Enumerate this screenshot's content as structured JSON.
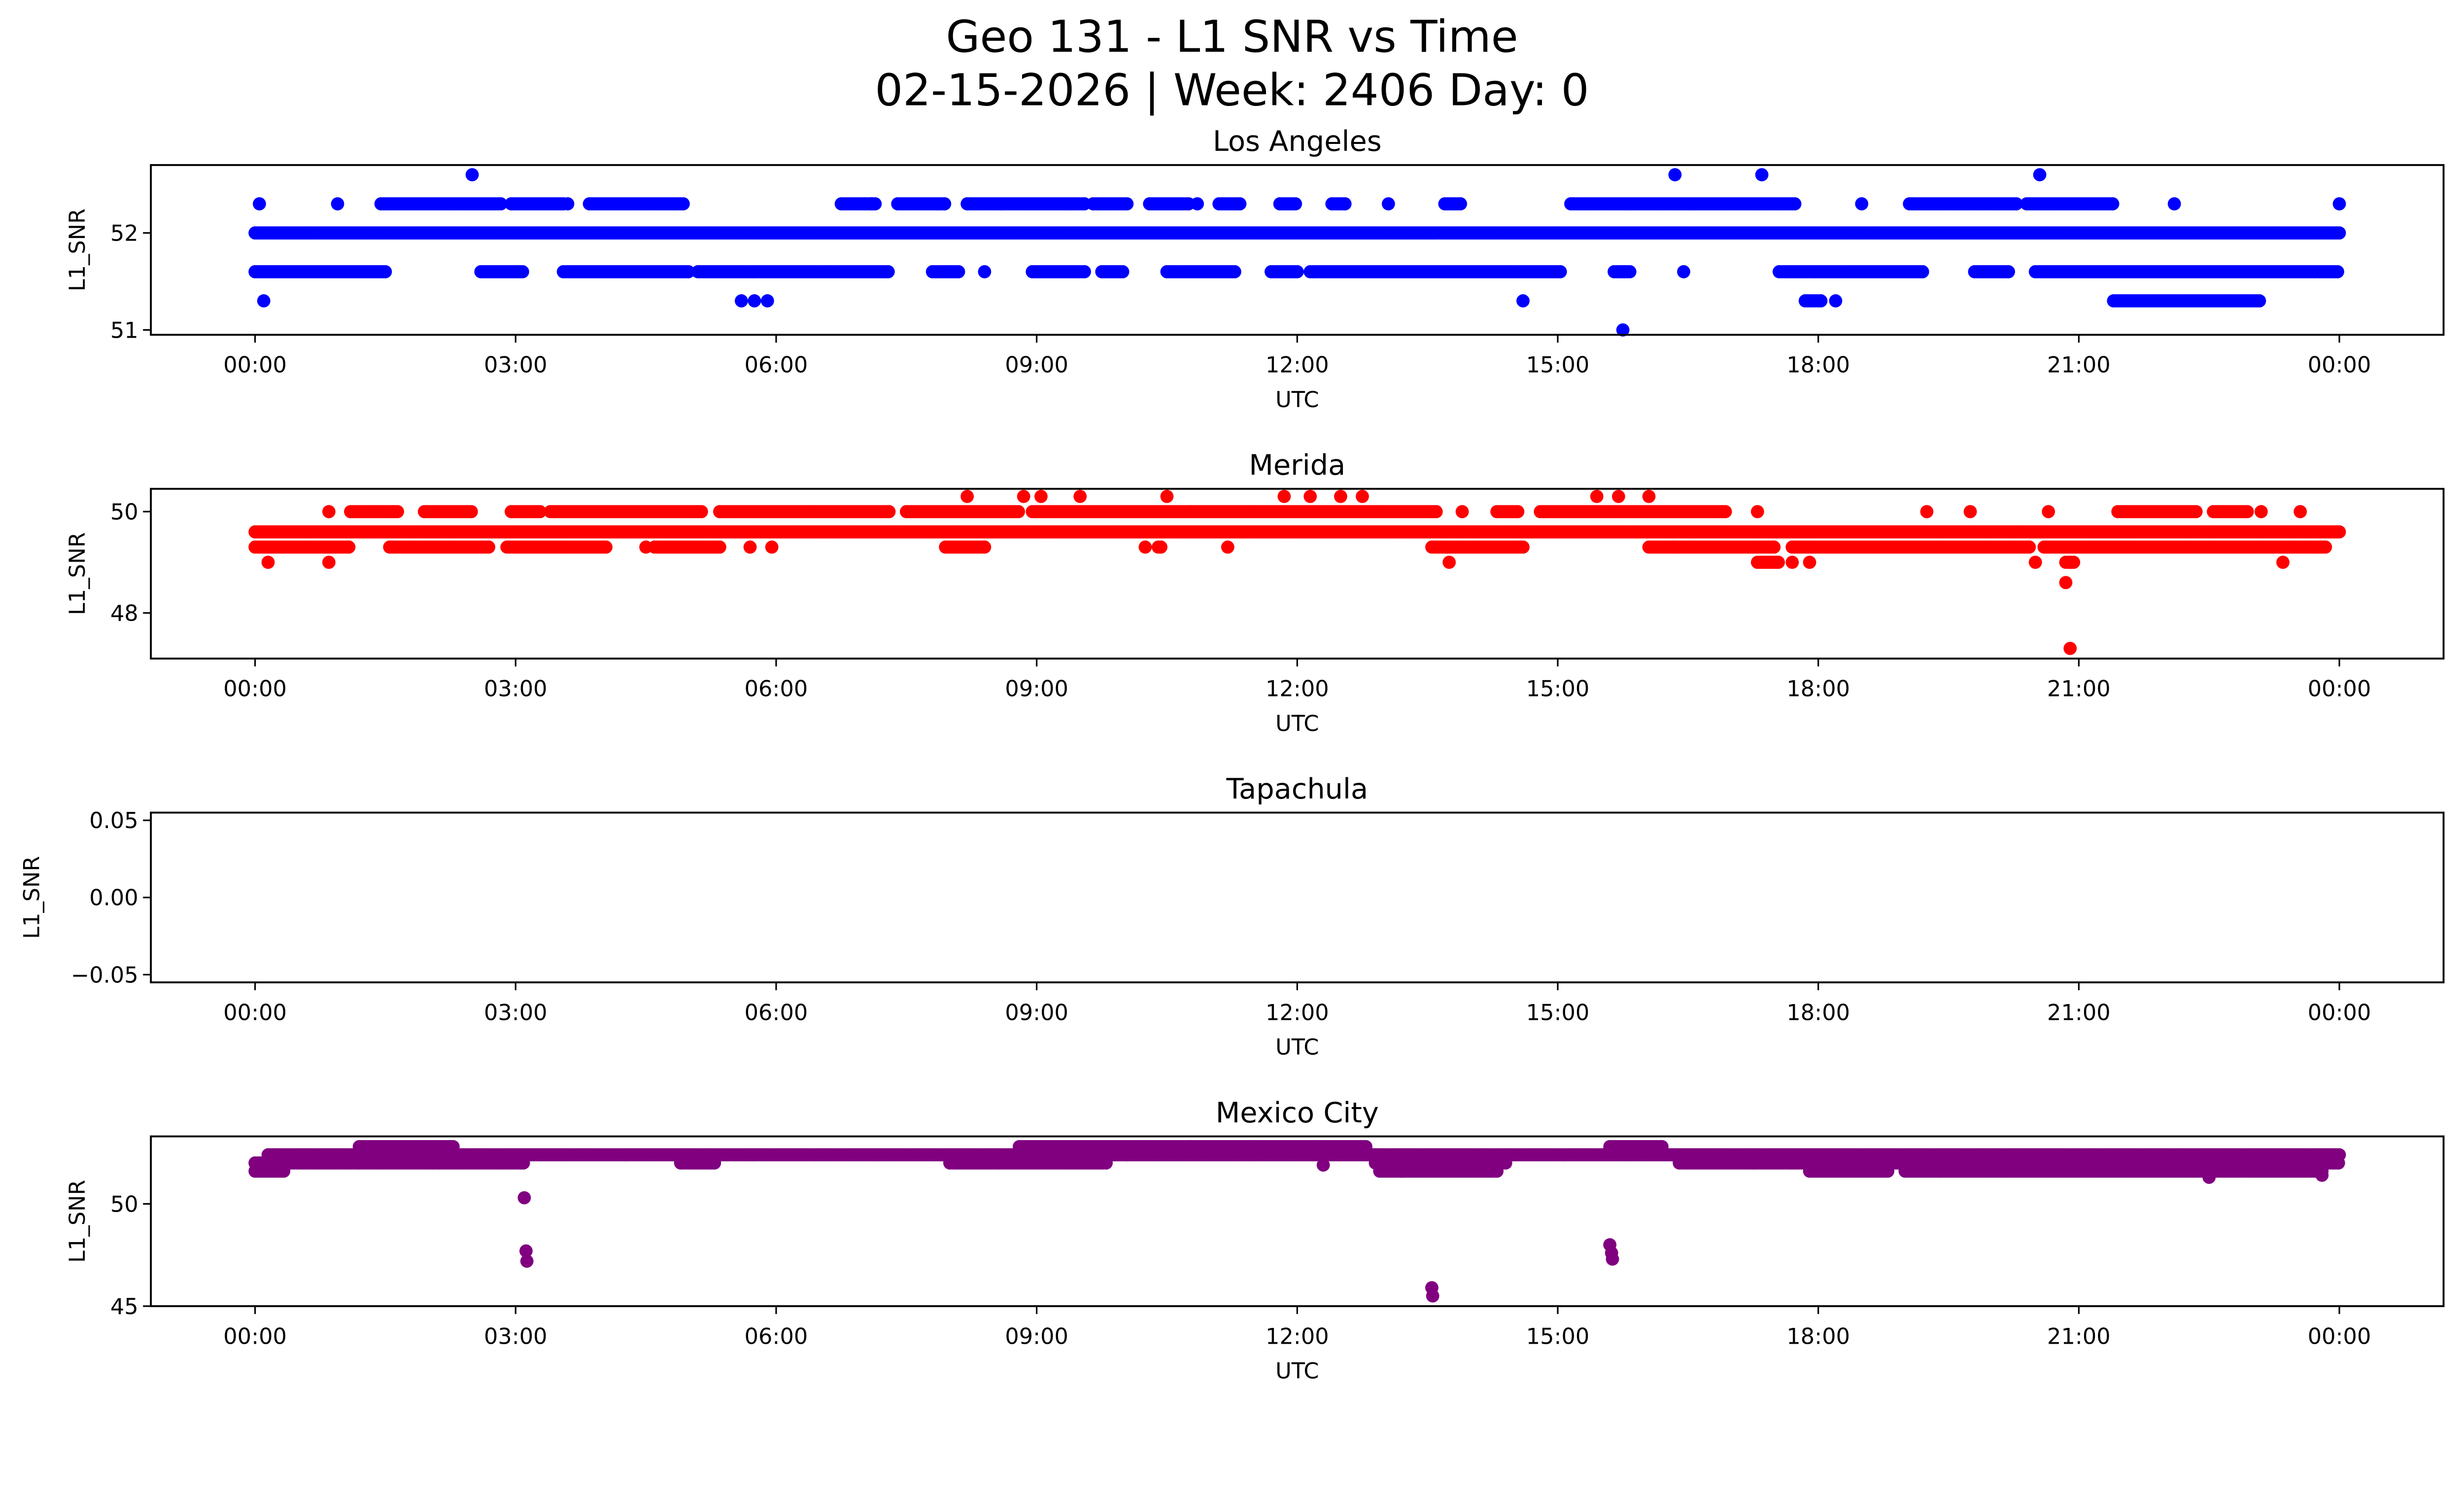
{
  "chart_data": {
    "type": "scatter",
    "title": "Geo 131 - L1 SNR vs Time",
    "subtitle": "02-15-2026 | Week: 2406 Day: 0",
    "x_tick_labels": [
      "00:00",
      "03:00",
      "06:00",
      "09:00",
      "12:00",
      "15:00",
      "18:00",
      "21:00",
      "00:00"
    ],
    "x_ticks_hours": [
      0,
      3,
      6,
      9,
      12,
      15,
      18,
      21,
      24
    ],
    "xlim_hours": [
      -1.2,
      25.2
    ],
    "panels": [
      {
        "name": "Los Angeles",
        "color": "#0000ff",
        "xlabel": "UTC",
        "ylabel": "L1_SNR",
        "ylim": [
          50.95,
          52.7
        ],
        "yticks": [
          51,
          52
        ],
        "ytick_labels": [
          "51",
          "52"
        ],
        "runs": [
          {
            "y": 52.0,
            "segments": [
              [
                0.0,
                24.0
              ]
            ]
          },
          {
            "y": 52.3,
            "segments": [
              [
                1.45,
                2.85
              ],
              [
                2.95,
                3.55
              ],
              [
                3.85,
                4.95
              ],
              [
                6.75,
                7.15
              ],
              [
                7.4,
                7.95
              ],
              [
                8.2,
                9.55
              ],
              [
                9.65,
                10.05
              ],
              [
                10.3,
                10.75
              ],
              [
                11.1,
                11.35
              ],
              [
                11.8,
                12.0
              ],
              [
                12.4,
                12.55
              ],
              [
                13.7,
                13.9
              ],
              [
                15.15,
                17.75
              ],
              [
                19.05,
                20.3
              ],
              [
                20.4,
                21.4
              ]
            ]
          },
          {
            "y": 51.6,
            "segments": [
              [
                0.0,
                1.5
              ],
              [
                2.6,
                3.1
              ],
              [
                3.55,
                5.0
              ],
              [
                5.1,
                7.3
              ],
              [
                7.8,
                8.1
              ],
              [
                8.95,
                9.55
              ],
              [
                9.75,
                10.0
              ],
              [
                10.5,
                11.3
              ],
              [
                11.7,
                12.0
              ],
              [
                12.15,
                15.05
              ],
              [
                15.65,
                15.85
              ],
              [
                17.55,
                19.2
              ],
              [
                19.8,
                20.2
              ],
              [
                20.5,
                24.0
              ]
            ]
          },
          {
            "y": 51.3,
            "segments": [
              [
                17.85,
                18.05
              ],
              [
                21.4,
                23.1
              ]
            ]
          }
        ],
        "points": [
          {
            "x": 0.05,
            "y": 52.3
          },
          {
            "x": 0.95,
            "y": 52.3
          },
          {
            "x": 3.6,
            "y": 52.3
          },
          {
            "x": 7.1,
            "y": 52.3
          },
          {
            "x": 10.85,
            "y": 52.3
          },
          {
            "x": 13.05,
            "y": 52.3
          },
          {
            "x": 18.5,
            "y": 52.3
          },
          {
            "x": 22.1,
            "y": 52.3
          },
          {
            "x": 24.0,
            "y": 52.3
          },
          {
            "x": 2.5,
            "y": 52.6
          },
          {
            "x": 16.35,
            "y": 52.6
          },
          {
            "x": 17.35,
            "y": 52.6
          },
          {
            "x": 20.55,
            "y": 52.6
          },
          {
            "x": 0.1,
            "y": 51.3
          },
          {
            "x": 5.6,
            "y": 51.3
          },
          {
            "x": 5.75,
            "y": 51.3
          },
          {
            "x": 5.9,
            "y": 51.3
          },
          {
            "x": 14.6,
            "y": 51.3
          },
          {
            "x": 18.2,
            "y": 51.3
          },
          {
            "x": 8.4,
            "y": 51.6
          },
          {
            "x": 19.2,
            "y": 51.6
          },
          {
            "x": 16.45,
            "y": 51.6
          },
          {
            "x": 15.75,
            "y": 51.0
          }
        ]
      },
      {
        "name": "Merida",
        "color": "#ff0000",
        "xlabel": "UTC",
        "ylabel": "L1_SNR",
        "ylim": [
          47.1,
          50.45
        ],
        "yticks": [
          48,
          50
        ],
        "ytick_labels": [
          "48",
          "50"
        ],
        "runs": [
          {
            "y": 49.6,
            "segments": [
              [
                0.0,
                24.0
              ]
            ]
          },
          {
            "y": 49.3,
            "segments": [
              [
                0.0,
                1.1
              ],
              [
                1.55,
                2.7
              ],
              [
                2.9,
                4.05
              ],
              [
                4.6,
                5.35
              ],
              [
                7.95,
                8.4
              ],
              [
                10.4,
                10.45
              ],
              [
                13.55,
                14.6
              ],
              [
                16.05,
                17.5
              ],
              [
                17.7,
                20.45
              ],
              [
                20.6,
                23.85
              ]
            ]
          },
          {
            "y": 50.0,
            "segments": [
              [
                1.1,
                1.65
              ],
              [
                1.95,
                2.5
              ],
              [
                2.95,
                3.3
              ],
              [
                3.4,
                5.15
              ],
              [
                5.35,
                7.3
              ],
              [
                7.5,
                8.8
              ],
              [
                8.95,
                13.6
              ],
              [
                14.3,
                14.55
              ],
              [
                14.8,
                16.95
              ],
              [
                21.45,
                22.35
              ],
              [
                22.55,
                22.95
              ]
            ]
          },
          {
            "y": 49.0,
            "segments": [
              [
                17.3,
                17.55
              ],
              [
                20.85,
                20.95
              ]
            ]
          }
        ],
        "points": [
          {
            "x": 0.85,
            "y": 50.0
          },
          {
            "x": 17.3,
            "y": 50.0
          },
          {
            "x": 19.25,
            "y": 50.0
          },
          {
            "x": 19.75,
            "y": 50.0
          },
          {
            "x": 20.65,
            "y": 50.0
          },
          {
            "x": 23.1,
            "y": 50.0
          },
          {
            "x": 23.55,
            "y": 50.0
          },
          {
            "x": 13.9,
            "y": 50.0
          },
          {
            "x": 8.2,
            "y": 50.3
          },
          {
            "x": 8.85,
            "y": 50.3
          },
          {
            "x": 9.05,
            "y": 50.3
          },
          {
            "x": 9.5,
            "y": 50.3
          },
          {
            "x": 10.5,
            "y": 50.3
          },
          {
            "x": 11.85,
            "y": 50.3
          },
          {
            "x": 12.15,
            "y": 50.3
          },
          {
            "x": 12.5,
            "y": 50.3
          },
          {
            "x": 12.75,
            "y": 50.3
          },
          {
            "x": 15.45,
            "y": 50.3
          },
          {
            "x": 15.7,
            "y": 50.3
          },
          {
            "x": 16.05,
            "y": 50.3
          },
          {
            "x": 0.15,
            "y": 49.0
          },
          {
            "x": 0.85,
            "y": 49.0
          },
          {
            "x": 13.75,
            "y": 49.0
          },
          {
            "x": 17.7,
            "y": 49.0
          },
          {
            "x": 17.9,
            "y": 49.0
          },
          {
            "x": 20.5,
            "y": 49.0
          },
          {
            "x": 23.35,
            "y": 49.0
          },
          {
            "x": 4.5,
            "y": 49.3
          },
          {
            "x": 5.7,
            "y": 49.3
          },
          {
            "x": 5.95,
            "y": 49.3
          },
          {
            "x": 10.25,
            "y": 49.3
          },
          {
            "x": 11.2,
            "y": 49.3
          },
          {
            "x": 16.35,
            "y": 49.3
          },
          {
            "x": 20.85,
            "y": 48.6
          },
          {
            "x": 20.9,
            "y": 47.3
          }
        ]
      },
      {
        "name": "Tapachula",
        "color": "#000000",
        "xlabel": "UTC",
        "ylabel": "L1_SNR",
        "ylim": [
          -0.055,
          0.055
        ],
        "yticks": [
          -0.05,
          0.0,
          0.05
        ],
        "ytick_labels": [
          "−0.05",
          "0.00",
          "0.05"
        ],
        "runs": [],
        "points": []
      },
      {
        "name": "Mexico City",
        "color": "#800080",
        "xlabel": "UTC",
        "ylabel": "L1_SNR",
        "ylim": [
          45.0,
          53.3
        ],
        "yticks": [
          45,
          50
        ],
        "ytick_labels": [
          "45",
          "50"
        ],
        "runs": [
          {
            "y": 52.4,
            "segments": [
              [
                0.15,
                24.0
              ]
            ]
          },
          {
            "y": 52.0,
            "segments": [
              [
                0.0,
                3.1
              ],
              [
                4.9,
                5.3
              ],
              [
                8.0,
                9.8
              ],
              [
                12.9,
                14.4
              ],
              [
                16.4,
                24.0
              ]
            ]
          },
          {
            "y": 51.6,
            "segments": [
              [
                0.0,
                0.35
              ],
              [
                12.95,
                14.3
              ],
              [
                17.9,
                18.8
              ],
              [
                19.0,
                23.8
              ]
            ]
          },
          {
            "y": 52.8,
            "segments": [
              [
                1.2,
                2.3
              ],
              [
                8.8,
                12.8
              ],
              [
                15.6,
                16.2
              ]
            ]
          }
        ],
        "points": [
          {
            "x": 3.1,
            "y": 50.3
          },
          {
            "x": 3.12,
            "y": 47.7
          },
          {
            "x": 3.13,
            "y": 47.2
          },
          {
            "x": 13.55,
            "y": 45.9
          },
          {
            "x": 13.56,
            "y": 45.5
          },
          {
            "x": 15.6,
            "y": 48.0
          },
          {
            "x": 15.62,
            "y": 47.6
          },
          {
            "x": 15.63,
            "y": 47.3
          },
          {
            "x": 22.5,
            "y": 51.3
          },
          {
            "x": 23.8,
            "y": 51.4
          },
          {
            "x": 12.3,
            "y": 51.9
          },
          {
            "x": 13.2,
            "y": 51.6
          }
        ]
      }
    ]
  }
}
